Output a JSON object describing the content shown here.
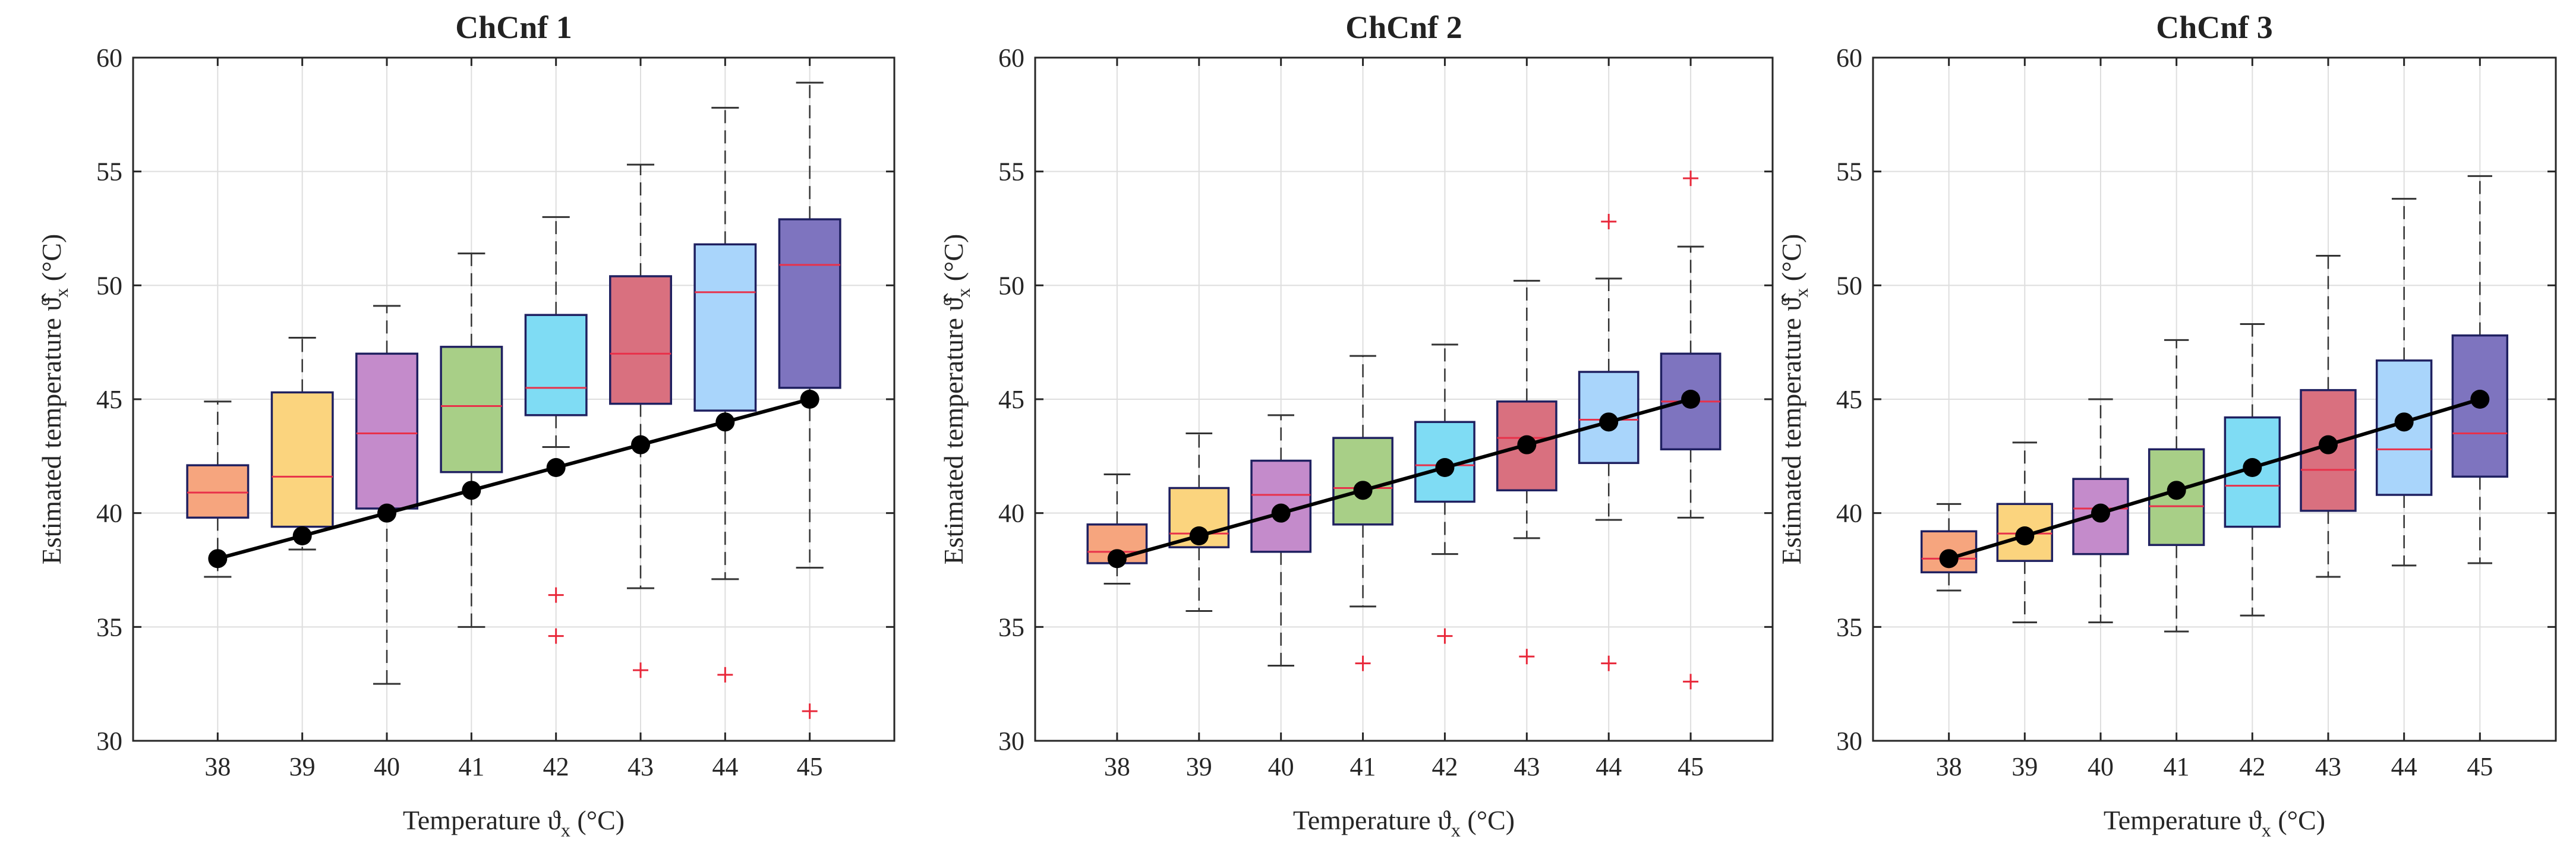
{
  "chart_data": [
    {
      "type": "box",
      "title": "ChCnf 1",
      "xlabel": "Temperature ϑ",
      "xlabel_sub": "x",
      "xlabel_unit": " (°C)",
      "ylabel": "Estimated temperature ϑ̂",
      "ylabel_sub": "x",
      "ylabel_unit": " (°C)",
      "categories": [
        "38",
        "39",
        "40",
        "41",
        "42",
        "43",
        "44",
        "45"
      ],
      "ylim": [
        30,
        60
      ],
      "yticks": [
        "30",
        "35",
        "40",
        "45",
        "50",
        "55",
        "60"
      ],
      "grid": true,
      "boxes": [
        {
          "x": 38,
          "whisker_low": 37.2,
          "q1": 39.8,
          "median": 40.9,
          "q3": 42.1,
          "whisker_high": 44.9,
          "outliers": []
        },
        {
          "x": 39,
          "whisker_low": 38.4,
          "q1": 39.4,
          "median": 41.6,
          "q3": 45.3,
          "whisker_high": 47.7,
          "outliers": []
        },
        {
          "x": 40,
          "whisker_low": 32.5,
          "q1": 40.2,
          "median": 43.5,
          "q3": 47.0,
          "whisker_high": 49.1,
          "outliers": []
        },
        {
          "x": 41,
          "whisker_low": 35.0,
          "q1": 41.8,
          "median": 44.7,
          "q3": 47.3,
          "whisker_high": 51.4,
          "outliers": []
        },
        {
          "x": 42,
          "whisker_low": 42.9,
          "q1": 44.3,
          "median": 45.5,
          "q3": 48.7,
          "whisker_high": 53.0,
          "outliers": [
            36.4,
            34.6
          ]
        },
        {
          "x": 43,
          "whisker_low": 36.7,
          "q1": 44.8,
          "median": 47.0,
          "q3": 50.4,
          "whisker_high": 55.3,
          "outliers": [
            33.1
          ]
        },
        {
          "x": 44,
          "whisker_low": 37.1,
          "q1": 44.5,
          "median": 49.7,
          "q3": 51.8,
          "whisker_high": 57.8,
          "outliers": [
            32.9
          ]
        },
        {
          "x": 45,
          "whisker_low": 37.6,
          "q1": 45.5,
          "median": 50.9,
          "q3": 52.9,
          "whisker_high": 58.9,
          "outliers": [
            31.3
          ]
        }
      ],
      "reference_line": {
        "x": [
          38,
          39,
          40,
          41,
          42,
          43,
          44,
          45
        ],
        "y": [
          38,
          39,
          40,
          41,
          42,
          43,
          44,
          45
        ]
      }
    },
    {
      "type": "box",
      "title": "ChCnf 2",
      "xlabel": "Temperature ϑ",
      "xlabel_sub": "x",
      "xlabel_unit": " (°C)",
      "ylabel": "Estimated temperature ϑ̂",
      "ylabel_sub": "x",
      "ylabel_unit": " (°C)",
      "categories": [
        "38",
        "39",
        "40",
        "41",
        "42",
        "43",
        "44",
        "45"
      ],
      "ylim": [
        30,
        60
      ],
      "yticks": [
        "30",
        "35",
        "40",
        "45",
        "50",
        "55",
        "60"
      ],
      "grid": true,
      "boxes": [
        {
          "x": 38,
          "whisker_low": 36.9,
          "q1": 37.8,
          "median": 38.3,
          "q3": 39.5,
          "whisker_high": 41.7,
          "outliers": []
        },
        {
          "x": 39,
          "whisker_low": 35.7,
          "q1": 38.5,
          "median": 39.1,
          "q3": 41.1,
          "whisker_high": 43.5,
          "outliers": []
        },
        {
          "x": 40,
          "whisker_low": 33.3,
          "q1": 38.3,
          "median": 40.8,
          "q3": 42.3,
          "whisker_high": 44.3,
          "outliers": []
        },
        {
          "x": 41,
          "whisker_low": 35.9,
          "q1": 39.5,
          "median": 41.1,
          "q3": 43.3,
          "whisker_high": 46.9,
          "outliers": [
            33.4
          ]
        },
        {
          "x": 42,
          "whisker_low": 38.2,
          "q1": 40.5,
          "median": 42.1,
          "q3": 44.0,
          "whisker_high": 47.4,
          "outliers": [
            34.6
          ]
        },
        {
          "x": 43,
          "whisker_low": 38.9,
          "q1": 41.0,
          "median": 43.3,
          "q3": 44.9,
          "whisker_high": 50.2,
          "outliers": [
            33.7
          ]
        },
        {
          "x": 44,
          "whisker_low": 39.7,
          "q1": 42.2,
          "median": 44.1,
          "q3": 46.2,
          "whisker_high": 50.3,
          "outliers": [
            52.8,
            33.4
          ]
        },
        {
          "x": 45,
          "whisker_low": 39.8,
          "q1": 42.8,
          "median": 44.9,
          "q3": 47.0,
          "whisker_high": 51.7,
          "outliers": [
            54.7,
            32.6
          ]
        }
      ],
      "reference_line": {
        "x": [
          38,
          39,
          40,
          41,
          42,
          43,
          44,
          45
        ],
        "y": [
          38,
          39,
          40,
          41,
          42,
          43,
          44,
          45
        ]
      }
    },
    {
      "type": "box",
      "title": "ChCnf 3",
      "xlabel": "Temperature ϑ",
      "xlabel_sub": "x",
      "xlabel_unit": " (°C)",
      "ylabel": "Estimated temperature ϑ̂",
      "ylabel_sub": "x",
      "ylabel_unit": " (°C)",
      "categories": [
        "38",
        "39",
        "40",
        "41",
        "42",
        "43",
        "44",
        "45"
      ],
      "ylim": [
        30,
        60
      ],
      "yticks": [
        "30",
        "35",
        "40",
        "45",
        "50",
        "55",
        "60"
      ],
      "grid": true,
      "boxes": [
        {
          "x": 38,
          "whisker_low": 36.6,
          "q1": 37.4,
          "median": 38.0,
          "q3": 39.2,
          "whisker_high": 40.4,
          "outliers": []
        },
        {
          "x": 39,
          "whisker_low": 35.2,
          "q1": 37.9,
          "median": 39.1,
          "q3": 40.4,
          "whisker_high": 43.1,
          "outliers": []
        },
        {
          "x": 40,
          "whisker_low": 35.2,
          "q1": 38.2,
          "median": 40.2,
          "q3": 41.5,
          "whisker_high": 45.0,
          "outliers": []
        },
        {
          "x": 41,
          "whisker_low": 34.8,
          "q1": 38.6,
          "median": 40.3,
          "q3": 42.8,
          "whisker_high": 47.6,
          "outliers": []
        },
        {
          "x": 42,
          "whisker_low": 35.5,
          "q1": 39.4,
          "median": 41.2,
          "q3": 44.2,
          "whisker_high": 48.3,
          "outliers": []
        },
        {
          "x": 43,
          "whisker_low": 37.2,
          "q1": 40.1,
          "median": 41.9,
          "q3": 45.4,
          "whisker_high": 51.3,
          "outliers": []
        },
        {
          "x": 44,
          "whisker_low": 37.7,
          "q1": 40.8,
          "median": 42.8,
          "q3": 46.7,
          "whisker_high": 53.8,
          "outliers": []
        },
        {
          "x": 45,
          "whisker_low": 37.8,
          "q1": 41.6,
          "median": 43.5,
          "q3": 47.8,
          "whisker_high": 54.8,
          "outliers": []
        }
      ],
      "reference_line": {
        "x": [
          38,
          39,
          40,
          41,
          42,
          43,
          44,
          45
        ],
        "y": [
          38,
          39,
          40,
          41,
          42,
          43,
          44,
          45
        ]
      }
    }
  ],
  "colors": {
    "box_fills": [
      "#F6A57E",
      "#FBD47E",
      "#C48BCB",
      "#A8CF87",
      "#7FDCF4",
      "#D9707F",
      "#A9D5FB",
      "#7E74BF"
    ],
    "box_edge": "#1F2060",
    "median": "#E8314A",
    "whisker": "#333333",
    "outlier": "#E8283A",
    "reference": "#000000",
    "grid": "#DEDEDE",
    "axes": "#262626"
  }
}
